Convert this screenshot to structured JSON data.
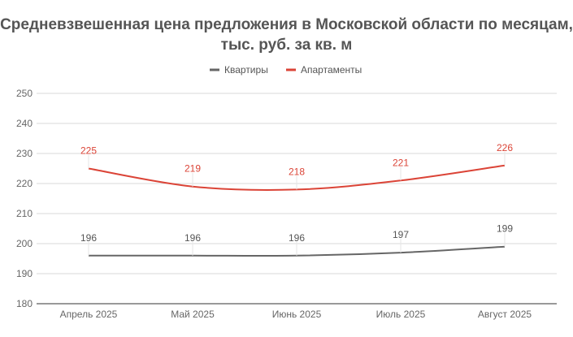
{
  "chart_data": {
    "type": "line",
    "title_line1": "Средневзвешенная цена предложения в Московской области по месяцам,",
    "title_line2": "тыс. руб. за кв. м",
    "categories": [
      "Апрель 2025",
      "Май 2025",
      "Июнь 2025",
      "Июль 2025",
      "Август 2025"
    ],
    "series": [
      {
        "name": "Квартиры",
        "color": "#666666",
        "values": [
          196,
          196,
          196,
          197,
          199
        ]
      },
      {
        "name": "Апартаменты",
        "color": "#db4437",
        "values": [
          225,
          219,
          218,
          221,
          226
        ]
      }
    ],
    "ylim": [
      180,
      250
    ],
    "yticks": [
      180,
      190,
      200,
      210,
      220,
      230,
      240,
      250
    ],
    "grid": true,
    "legend": "top-center",
    "xlabel": "",
    "ylabel": ""
  }
}
